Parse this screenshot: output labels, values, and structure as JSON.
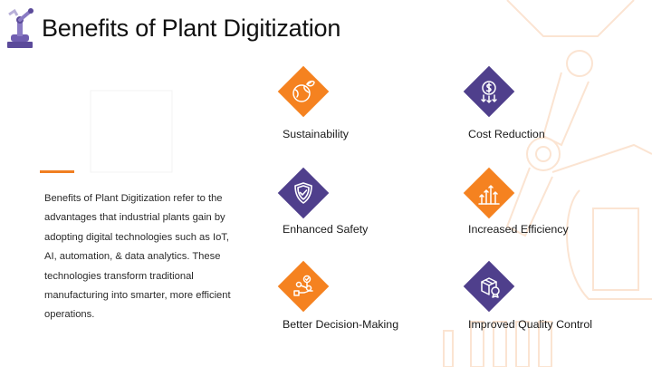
{
  "slide": {
    "title": "Benefits of Plant Digitization",
    "description": "Benefits of Plant Digitization refer to the advantages that industrial plants gain by adopting digital technologies such as IoT, AI, automation, & data analytics. These technologies transform traditional manufacturing into smarter, more efficient operations."
  },
  "colors": {
    "accent_orange": "#f58220",
    "accent_purple": "#4f3f8c",
    "background_art": "#fbe4d2"
  },
  "benefits": [
    {
      "label": "Sustainability",
      "icon": "globe-leaf-icon",
      "color": "orange"
    },
    {
      "label": "Cost Reduction",
      "icon": "dollar-down-icon",
      "color": "purple"
    },
    {
      "label": "Enhanced Safety",
      "icon": "shield-check-icon",
      "color": "purple"
    },
    {
      "label": "Increased Efficiency",
      "icon": "growth-arrows-icon",
      "color": "orange"
    },
    {
      "label": "Better Decision-Making",
      "icon": "decision-path-icon",
      "color": "orange"
    },
    {
      "label": "Improved Quality Control",
      "icon": "quality-box-icon",
      "color": "purple"
    }
  ]
}
